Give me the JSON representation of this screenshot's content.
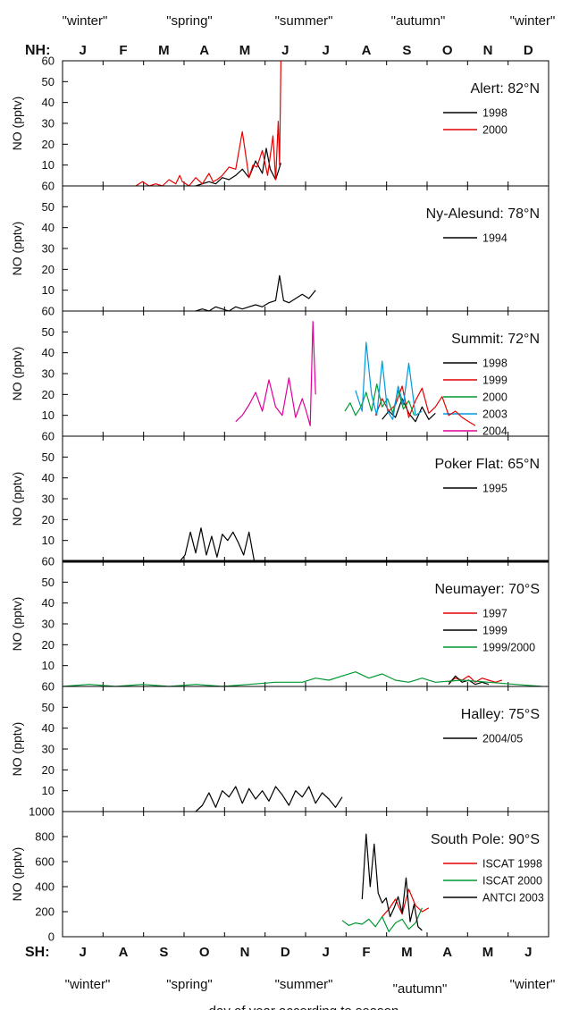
{
  "figure": {
    "nh_label": "NH:",
    "sh_label": "SH:",
    "nh_months": [
      "J",
      "F",
      "M",
      "A",
      "M",
      "J",
      "J",
      "A",
      "S",
      "O",
      "N",
      "D"
    ],
    "sh_months": [
      "J",
      "A",
      "S",
      "O",
      "N",
      "D",
      "J",
      "F",
      "M",
      "A",
      "M",
      "J"
    ],
    "top_seasons": [
      "\"winter\"",
      "\"spring\"",
      "\"summer\"",
      "\"autumn\"",
      "\"winter\""
    ],
    "bottom_seasons": [
      "\"winter\"",
      "\"spring\"",
      "\"summer\"",
      "\"autumn\"",
      "\"winter\""
    ],
    "xlabel": "day of year according to season",
    "ylabel": "NO (pptv)"
  },
  "chart_data": [
    {
      "type": "line",
      "station": "Alert: 82°N",
      "ylim": [
        0,
        60
      ],
      "yticks": [
        10,
        20,
        30,
        40,
        50,
        60
      ],
      "series": [
        {
          "name": "1998",
          "color": "#000000",
          "x": [
            100,
            110,
            115,
            120,
            125,
            130,
            135,
            140,
            145,
            150,
            153,
            156,
            160,
            164
          ],
          "y": [
            0,
            2,
            1,
            4,
            3,
            5,
            8,
            4,
            12,
            6,
            18,
            8,
            3,
            11
          ]
        },
        {
          "name": "2000",
          "color": "#e60000",
          "x": [
            55,
            60,
            65,
            70,
            75,
            80,
            85,
            88,
            90,
            95,
            100,
            105,
            110,
            113,
            116,
            120,
            125,
            130,
            135,
            140,
            143,
            146,
            150,
            154,
            158,
            160,
            162,
            163,
            164
          ],
          "y": [
            0,
            2,
            0,
            1,
            0,
            3,
            1,
            5,
            2,
            0,
            4,
            1,
            6,
            2,
            3,
            5,
            9,
            8,
            26,
            4,
            10,
            9,
            17,
            5,
            24,
            3,
            31,
            10,
            60
          ]
        }
      ]
    },
    {
      "type": "line",
      "station": "Ny-Alesund: 78°N",
      "ylim": [
        0,
        60
      ],
      "yticks": [
        10,
        20,
        30,
        40,
        50,
        60
      ],
      "series": [
        {
          "name": "1994",
          "color": "#000000",
          "x": [
            100,
            105,
            110,
            115,
            120,
            125,
            130,
            135,
            140,
            145,
            150,
            155,
            160,
            163,
            166,
            170,
            175,
            180,
            185,
            190
          ],
          "y": [
            0,
            1,
            0,
            2,
            1,
            0,
            2,
            1,
            2,
            3,
            2,
            4,
            5,
            17,
            5,
            4,
            6,
            8,
            6,
            10
          ]
        }
      ]
    },
    {
      "type": "line",
      "station": "Summit: 72°N",
      "ylim": [
        0,
        60
      ],
      "yticks": [
        10,
        20,
        30,
        40,
        50,
        60
      ],
      "series": [
        {
          "name": "1998",
          "color": "#000000",
          "x": [
            240,
            245,
            250,
            255,
            260,
            265,
            270,
            275,
            280
          ],
          "y": [
            8,
            12,
            9,
            18,
            11,
            7,
            14,
            8,
            11
          ]
        },
        {
          "name": "1999",
          "color": "#e60000",
          "x": [
            235,
            240,
            245,
            250,
            255,
            260,
            265,
            270,
            275,
            280,
            285,
            290,
            295,
            300,
            305,
            310
          ],
          "y": [
            10,
            18,
            12,
            15,
            24,
            9,
            17,
            23,
            11,
            14,
            19,
            10,
            12,
            9,
            7,
            5
          ]
        },
        {
          "name": "2000",
          "color": "#009933",
          "x": [
            212,
            216,
            220,
            224,
            228,
            232,
            236,
            240,
            244,
            248,
            252,
            256,
            260,
            264
          ],
          "y": [
            12,
            16,
            10,
            14,
            21,
            12,
            25,
            14,
            18,
            11,
            22,
            13,
            17,
            10
          ]
        },
        {
          "name": "2003",
          "color": "#0099dd",
          "x": [
            220,
            225,
            228,
            232,
            236,
            240,
            244,
            248,
            252,
            256,
            260,
            265,
            270
          ],
          "y": [
            22,
            12,
            45,
            20,
            10,
            36,
            12,
            8,
            24,
            15,
            35,
            10,
            12
          ]
        },
        {
          "name": "2004",
          "color": "#dd0099",
          "x": [
            130,
            135,
            140,
            145,
            150,
            155,
            160,
            165,
            170,
            175,
            180,
            183,
            186,
            188,
            190
          ],
          "y": [
            7,
            10,
            15,
            21,
            12,
            27,
            14,
            10,
            28,
            9,
            18,
            12,
            5,
            55,
            20
          ]
        }
      ]
    },
    {
      "type": "line",
      "station": "Poker Flat: 65°N",
      "ylim": [
        0,
        60
      ],
      "yticks": [
        10,
        20,
        30,
        40,
        50,
        60
      ],
      "series": [
        {
          "name": "1995",
          "color": "#000000",
          "x": [
            88,
            92,
            96,
            100,
            104,
            108,
            112,
            116,
            120,
            124,
            128,
            132,
            136,
            140,
            144
          ],
          "y": [
            0,
            3,
            14,
            4,
            16,
            3,
            12,
            2,
            13,
            10,
            14,
            9,
            3,
            14,
            0
          ]
        }
      ]
    },
    {
      "type": "line",
      "station": "Neumayer: 70°S",
      "ylim": [
        0,
        60
      ],
      "yticks": [
        10,
        20,
        30,
        40,
        50,
        60
      ],
      "series": [
        {
          "name": "1997",
          "color": "#e60000",
          "x": [
            290,
            295,
            300,
            305,
            310,
            315,
            320,
            325,
            330
          ],
          "y": [
            2,
            4,
            3,
            5,
            2,
            4,
            3,
            2,
            3
          ]
        },
        {
          "name": "1999",
          "color": "#000000",
          "x": [
            290,
            295,
            300,
            305,
            310,
            315,
            320
          ],
          "y": [
            1,
            5,
            2,
            3,
            1,
            2,
            1
          ]
        },
        {
          "name": "1999/2000",
          "color": "#009933",
          "x": [
            0,
            20,
            40,
            60,
            80,
            100,
            120,
            140,
            160,
            180,
            190,
            200,
            210,
            220,
            230,
            240,
            250,
            260,
            270,
            280,
            300,
            320,
            340,
            360
          ],
          "y": [
            0,
            1,
            0,
            1,
            0,
            1,
            0,
            1,
            2,
            2,
            4,
            3,
            5,
            7,
            4,
            6,
            3,
            2,
            4,
            2,
            3,
            2,
            1,
            0
          ]
        }
      ]
    },
    {
      "type": "line",
      "station": "Halley: 75°S",
      "ylim": [
        0,
        60
      ],
      "yticks": [
        10,
        20,
        30,
        40,
        50,
        60
      ],
      "series": [
        {
          "name": "2004/05",
          "color": "#000000",
          "x": [
            100,
            105,
            110,
            115,
            120,
            125,
            130,
            135,
            140,
            145,
            150,
            155,
            160,
            165,
            170,
            175,
            180,
            185,
            190,
            195,
            200,
            205,
            210
          ],
          "y": [
            0,
            3,
            9,
            2,
            10,
            7,
            12,
            4,
            11,
            6,
            10,
            5,
            12,
            8,
            3,
            10,
            7,
            12,
            4,
            9,
            6,
            2,
            7
          ]
        }
      ]
    },
    {
      "type": "line",
      "station": "South Pole: 90°S",
      "ylim": [
        0,
        1000
      ],
      "yticks": [
        0,
        200,
        400,
        600,
        800,
        1000
      ],
      "series": [
        {
          "name": "ISCAT 1998",
          "color": "#e60000",
          "x": [
            240,
            245,
            250,
            255,
            260,
            265,
            270,
            275
          ],
          "y": [
            160,
            220,
            300,
            180,
            380,
            250,
            200,
            230
          ]
        },
        {
          "name": "ISCAT 2000",
          "color": "#009933",
          "x": [
            210,
            215,
            220,
            225,
            230,
            235,
            240,
            245,
            250,
            255,
            260,
            265,
            270
          ],
          "y": [
            130,
            90,
            110,
            100,
            140,
            80,
            160,
            40,
            110,
            140,
            60,
            110,
            230
          ]
        },
        {
          "name": "ANTCI 2003",
          "color": "#000000",
          "x": [
            225,
            228,
            231,
            234,
            237,
            240,
            243,
            246,
            249,
            252,
            255,
            258,
            261,
            264,
            267,
            270
          ],
          "y": [
            300,
            820,
            400,
            740,
            350,
            270,
            310,
            160,
            230,
            320,
            190,
            470,
            120,
            260,
            80,
            50
          ]
        }
      ]
    }
  ]
}
